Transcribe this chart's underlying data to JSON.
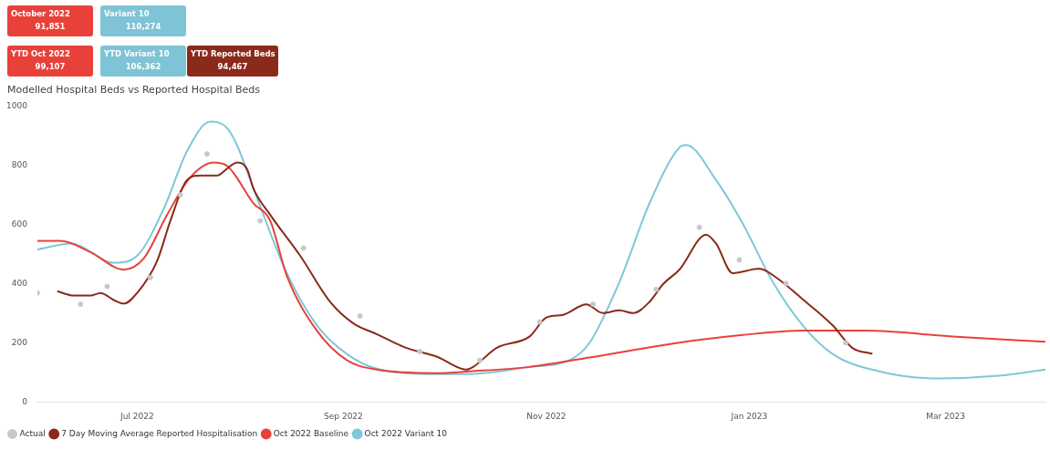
{
  "chart_data": {
    "type": "line",
    "title": "Modelled Hospital Beds vs Reported Hospital Beds",
    "annotations": [
      "October 2022\n91,851",
      "Variant 10\n110,274",
      "YTD Oct 2022\n99,107",
      "YTD Variant 10\n106,362",
      "YTD Reported Beds\n94,467"
    ],
    "xlim": [
      "2022-06-01",
      "2023-03-31"
    ],
    "xticks": [
      {
        "value": "2022-07-01",
        "label": "Jul 2022"
      },
      {
        "value": "2022-09-01",
        "label": "Sep 2022"
      },
      {
        "value": "2022-11-01",
        "label": "Nov 2022"
      },
      {
        "value": "2023-01-01",
        "label": "Jan 2023"
      },
      {
        "value": "2023-03-01",
        "label": "Mar 2023"
      }
    ],
    "ylim": [
      0,
      1000
    ],
    "yticks": [
      0,
      200,
      400,
      600,
      800,
      1000
    ],
    "legend": "bottom",
    "marker": "none",
    "line_style": "solid",
    "series": [
      {
        "name": "Actual",
        "type": "scatter",
        "marker": "circle",
        "color": "#c8c8c8",
        "x": [
          "2022-06-01",
          "2022-06-14",
          "2022-06-22",
          "2022-07-05",
          "2022-07-14",
          "2022-07-22",
          "2022-08-07",
          "2022-08-20",
          "2022-09-06",
          "2022-09-24",
          "2022-10-12",
          "2022-10-30",
          "2022-11-15",
          "2022-12-04",
          "2022-12-17",
          "2022-12-29",
          "2023-01-12",
          "2023-01-30"
        ],
        "values": [
          368,
          330,
          390,
          420,
          700,
          838,
          612,
          520,
          290,
          170,
          140,
          270,
          330,
          380,
          590,
          480,
          400,
          200
        ]
      },
      {
        "name": "7 Day Moving Average Reported Hospitalisation",
        "color": "#8b2a1a",
        "x": [
          "2022-06-07",
          "2022-06-12",
          "2022-06-17",
          "2022-06-20",
          "2022-06-24",
          "2022-06-27",
          "2022-07-01",
          "2022-07-07",
          "2022-07-11",
          "2022-07-16",
          "2022-07-20",
          "2022-07-25",
          "2022-07-28",
          "2022-07-31",
          "2022-08-03",
          "2022-08-05",
          "2022-08-10",
          "2022-08-19",
          "2022-08-28",
          "2022-09-04",
          "2022-09-11",
          "2022-09-20",
          "2022-09-29",
          "2022-10-08",
          "2022-10-10",
          "2022-10-17",
          "2022-10-27",
          "2022-11-01",
          "2022-11-06",
          "2022-11-13",
          "2022-11-18",
          "2022-11-23",
          "2022-11-27",
          "2022-12-02",
          "2022-12-06",
          "2022-12-11",
          "2022-12-19",
          "2022-12-22",
          "2022-12-27",
          "2023-01-04",
          "2023-01-09",
          "2023-01-17",
          "2023-01-26",
          "2023-02-01",
          "2023-02-07"
        ],
        "values": [
          374,
          359,
          359,
          368,
          344,
          332,
          368,
          476,
          612,
          750,
          765,
          765,
          788,
          809,
          788,
          720,
          632,
          494,
          338,
          265,
          229,
          182,
          153,
          109,
          118,
          182,
          221,
          285,
          294,
          329,
          300,
          309,
          300,
          338,
          397,
          447,
          565,
          535,
          435,
          450,
          421,
          347,
          259,
          182,
          162
        ]
      },
      {
        "name": "Oct 2022 Baseline",
        "color": "#e8413a",
        "x": [
          "2022-06-01",
          "2022-06-08",
          "2022-06-17",
          "2022-06-27",
          "2022-07-03",
          "2022-07-10",
          "2022-07-17",
          "2022-07-24",
          "2022-07-28",
          "2022-08-05",
          "2022-08-10",
          "2022-08-15",
          "2022-08-24",
          "2022-09-02",
          "2022-09-11",
          "2022-09-29",
          "2022-10-09",
          "2022-10-27",
          "2022-11-14",
          "2022-12-11",
          "2022-12-30",
          "2023-01-17",
          "2023-02-05",
          "2023-03-03",
          "2023-03-31"
        ],
        "values": [
          544,
          544,
          506,
          447,
          485,
          632,
          759,
          809,
          798,
          671,
          612,
          426,
          241,
          141,
          109,
          97,
          103,
          118,
          150,
          200,
          226,
          241,
          241,
          221,
          203
        ]
      },
      {
        "name": "Oct 2022 Variant 10",
        "color": "#7ec8d8",
        "x": [
          "2022-06-01",
          "2022-06-11",
          "2022-06-24",
          "2022-07-01",
          "2022-07-09",
          "2022-07-16",
          "2022-07-23",
          "2022-07-28",
          "2022-07-31",
          "2022-08-05",
          "2022-08-15",
          "2022-08-24",
          "2022-09-02",
          "2022-09-11",
          "2022-09-29",
          "2022-10-09",
          "2022-10-27",
          "2022-11-08",
          "2022-11-14",
          "2022-11-23",
          "2022-12-02",
          "2022-12-11",
          "2022-12-13",
          "2022-12-22",
          "2022-12-30",
          "2023-01-08",
          "2023-01-17",
          "2023-01-26",
          "2023-02-09",
          "2023-02-27",
          "2023-03-17",
          "2023-03-31"
        ],
        "values": [
          515,
          535,
          470,
          494,
          653,
          847,
          947,
          926,
          868,
          720,
          435,
          259,
          162,
          112,
          94,
          94,
          118,
          141,
          200,
          406,
          671,
          860,
          868,
          750,
          603,
          406,
          259,
          162,
          103,
          79,
          88,
          109
        ]
      }
    ]
  }
}
